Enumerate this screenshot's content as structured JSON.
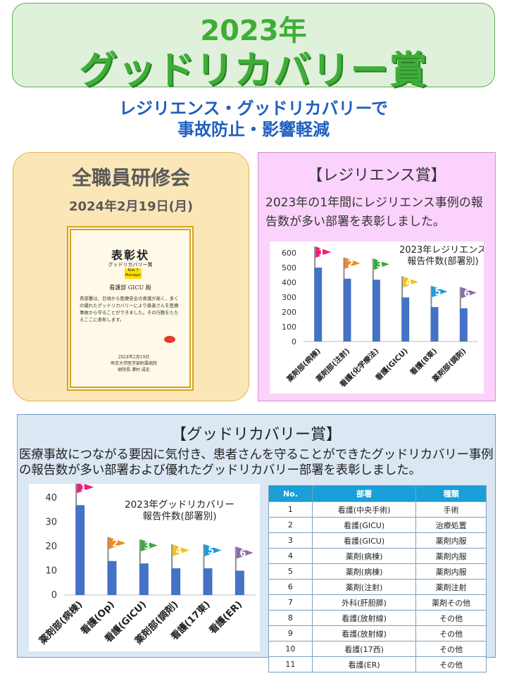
{
  "header": {
    "year": "2023年",
    "title": "グッドリカバリー賞"
  },
  "subtitle": {
    "line1": "レジリエンス・グッドリカバリーで",
    "line2": "事故防止・影響軽減"
  },
  "seminar": {
    "title": "全職員研修会",
    "date": "2024年2月19日(月)",
    "certificate": {
      "heading": "表彰状",
      "award_name": "グッドリカバリー賞",
      "sticker": "Risk T Manager",
      "recipient": "看護部 GICU 殿",
      "body": "貴部署は、日頃から医療安全の意識が高く、多くの優れたグッドリカバリーにより患者さんを医療事故から守ることができました。その行動をたたえここに表彰します。",
      "date": "2024年2月19日",
      "org": "帝京大学医学部附属病院",
      "signer": "病院長 澤村 成史"
    }
  },
  "resilience": {
    "heading": "【レジリエンス賞】",
    "description": "2023年の1年間にレジリエンス事例の報告数が多い部署を表彰しました。"
  },
  "goodrecovery": {
    "heading": "【グッドリカバリー賞】",
    "description": "医療事故につながる要因に気付き、患者さんを守ることができたグッドリカバリー事例の報告数が多い部署および優れたグッドリカバリー部署を表彰しました。"
  },
  "table": {
    "headers": [
      "No.",
      "部署",
      "種類"
    ],
    "rows": [
      [
        "1",
        "看護(中央手術)",
        "手術"
      ],
      [
        "2",
        "看護(GICU)",
        "治療処置"
      ],
      [
        "3",
        "看護(GICU)",
        "薬剤内服"
      ],
      [
        "4",
        "薬剤(病棟)",
        "薬剤内服"
      ],
      [
        "5",
        "薬剤(病棟)",
        "薬剤内服"
      ],
      [
        "6",
        "薬剤(注射)",
        "薬剤注射"
      ],
      [
        "7",
        "外科(肝胆膵)",
        "薬剤その他"
      ],
      [
        "8",
        "看護(放射線)",
        "その他"
      ],
      [
        "9",
        "看護(放射線)",
        "その他"
      ],
      [
        "10",
        "看護(17西)",
        "その他"
      ],
      [
        "11",
        "看護(ER)",
        "その他"
      ]
    ]
  },
  "chart_data": [
    {
      "type": "bar",
      "title": "2023年レジリエンス報告件数(部署別)",
      "categories": [
        "薬剤部(病棟)",
        "薬剤部(注射)",
        "看護(化学療法)",
        "看護(GICU)",
        "看護(8東)",
        "薬剤部(調剤)"
      ],
      "values": [
        500,
        425,
        418,
        298,
        233,
        225
      ],
      "ylim": [
        0,
        600
      ],
      "yticks": [
        0,
        100,
        200,
        300,
        400,
        500,
        600
      ],
      "rank_flags": [
        "1",
        "2",
        "3",
        "4",
        "5",
        "6"
      ],
      "flag_colors": [
        "#e8217a",
        "#f08a1c",
        "#3aaa35",
        "#f4c21b",
        "#1aa0dc",
        "#8d6bb0"
      ],
      "bar_color": "#4472c4",
      "grid": false
    },
    {
      "type": "bar",
      "title": "2023年グッドリカバリー報告件数(部署別)",
      "categories": [
        "薬剤部(病棟)",
        "看護(Op)",
        "看護(GICU)",
        "薬剤部(調剤)",
        "看護(17東)",
        "看護(ER)"
      ],
      "values": [
        37,
        14,
        13,
        11,
        11,
        10
      ],
      "ylim": [
        0,
        40
      ],
      "yticks": [
        0,
        10,
        20,
        30,
        40
      ],
      "rank_flags": [
        "1",
        "2",
        "3",
        "4",
        "5",
        "6"
      ],
      "flag_colors": [
        "#e8217a",
        "#f08a1c",
        "#3aaa35",
        "#f4c21b",
        "#1aa0dc",
        "#8d6bb0"
      ],
      "bar_color": "#4472c4",
      "grid": false
    }
  ]
}
